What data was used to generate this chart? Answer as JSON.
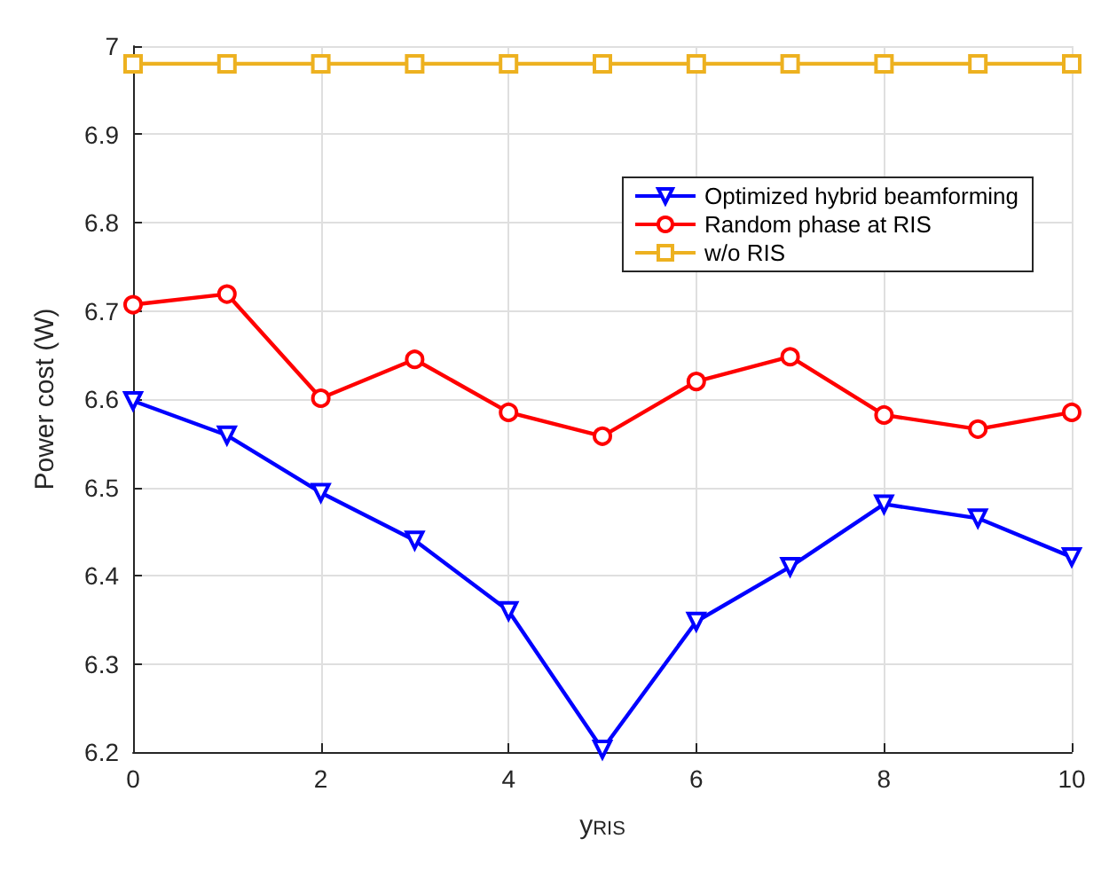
{
  "chart_data": {
    "type": "line",
    "xlabel": "y$_{RIS}$",
    "ylabel": "Power cost (W)",
    "x": [
      0,
      1,
      2,
      3,
      4,
      5,
      6,
      7,
      8,
      9,
      10
    ],
    "series": [
      {
        "name": "Optimized hybrid beamforming",
        "color": "#0000ff",
        "marker": "triangle",
        "values": [
          6.598,
          6.559,
          6.494,
          6.44,
          6.36,
          6.203,
          6.348,
          6.41,
          6.481,
          6.465,
          6.421
        ]
      },
      {
        "name": "Random phase at RIS",
        "color": "#ff0000",
        "marker": "circle",
        "values": [
          6.707,
          6.719,
          6.601,
          6.645,
          6.585,
          6.558,
          6.62,
          6.648,
          6.582,
          6.566,
          6.585
        ]
      },
      {
        "name": "w/o RIS",
        "color": "#edb120",
        "marker": "square",
        "values": [
          6.98,
          6.98,
          6.98,
          6.98,
          6.98,
          6.98,
          6.98,
          6.98,
          6.98,
          6.98,
          6.98
        ]
      }
    ],
    "xlim": [
      0,
      10
    ],
    "xticks": [
      0,
      2,
      4,
      6,
      8,
      10
    ],
    "ylim": [
      6.2,
      7
    ],
    "yticks": [
      6.2,
      6.3,
      6.4,
      6.5,
      6.6,
      6.7,
      6.8,
      6.9,
      7
    ],
    "grid": true,
    "legend": "top right",
    "line_style": "solid"
  }
}
